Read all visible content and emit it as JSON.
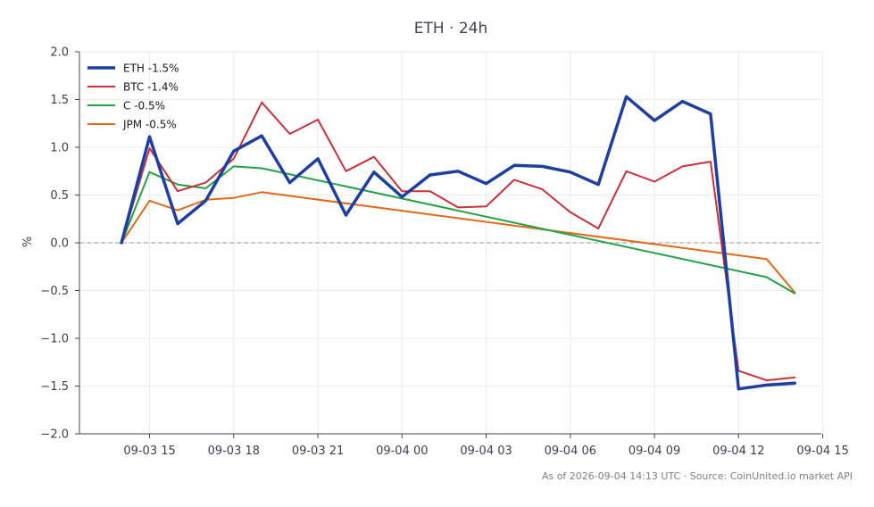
{
  "chart_data": {
    "type": "line",
    "title": "ETH · 24h",
    "xlabel": "",
    "ylabel": "%",
    "ylim": [
      -2.0,
      2.0
    ],
    "yticks": [
      -2.0,
      -1.5,
      -1.0,
      -0.5,
      0.0,
      0.5,
      1.0,
      1.5,
      2.0
    ],
    "ytick_labels": [
      "−2.0",
      "−1.5",
      "−1.0",
      "−0.5",
      "0.0",
      "0.5",
      "1.0",
      "1.5",
      "2.0"
    ],
    "xlim": [
      "2026-09-03 14:00",
      "2026-09-04 15:00"
    ],
    "xtick_labels": [
      "09-03 15",
      "09-03 18",
      "09-03 21",
      "09-04 00",
      "09-04 03",
      "09-04 06",
      "09-04 09",
      "09-04 12",
      "09-04 15"
    ],
    "x": [
      "2026-09-03 14:00",
      "2026-09-03 15:00",
      "2026-09-03 16:00",
      "2026-09-03 17:00",
      "2026-09-03 18:00",
      "2026-09-03 19:00",
      "2026-09-03 20:00",
      "2026-09-03 21:00",
      "2026-09-03 22:00",
      "2026-09-03 23:00",
      "2026-09-04 00:00",
      "2026-09-04 01:00",
      "2026-09-04 02:00",
      "2026-09-04 03:00",
      "2026-09-04 04:00",
      "2026-09-04 05:00",
      "2026-09-04 06:00",
      "2026-09-04 07:00",
      "2026-09-04 08:00",
      "2026-09-04 09:00",
      "2026-09-04 10:00",
      "2026-09-04 11:00",
      "2026-09-04 12:00",
      "2026-09-04 13:00",
      "2026-09-04 14:00"
    ],
    "grid": true,
    "legend_position": "top-left",
    "reference_line": {
      "y": 0.0,
      "style": "dashed",
      "color": "#8d97ae"
    },
    "series": [
      {
        "name": "ETH -1.5%",
        "color": "#1f3fa0",
        "values": [
          0.0,
          1.11,
          0.2,
          0.44,
          0.96,
          1.12,
          0.63,
          0.88,
          0.29,
          0.74,
          0.48,
          0.71,
          0.75,
          0.62,
          0.81,
          0.8,
          0.74,
          0.61,
          1.53,
          1.28,
          1.48,
          1.35,
          -1.53,
          -1.49,
          -1.47
        ]
      },
      {
        "name": "BTC -1.4%",
        "color": "#c9303a",
        "values": [
          0.0,
          0.99,
          0.54,
          0.63,
          0.88,
          1.47,
          1.14,
          1.29,
          0.75,
          0.9,
          0.54,
          0.54,
          0.37,
          0.38,
          0.66,
          0.56,
          0.32,
          0.15,
          0.75,
          0.64,
          0.8,
          0.85,
          -1.34,
          -1.44,
          -1.41
        ]
      },
      {
        "name": "C -0.5%",
        "color": "#24a148",
        "x": [
          "2026-09-03 14:00",
          "2026-09-03 15:00",
          "2026-09-03 16:00",
          "2026-09-03 17:00",
          "2026-09-03 18:00",
          "2026-09-03 19:00",
          "2026-09-04 13:00",
          "2026-09-04 14:00"
        ],
        "values": [
          0.0,
          0.74,
          0.61,
          0.57,
          0.8,
          0.78,
          -0.36,
          -0.53
        ]
      },
      {
        "name": "JPM -0.5%",
        "color": "#e06a17",
        "x": [
          "2026-09-03 14:00",
          "2026-09-03 15:00",
          "2026-09-03 16:00",
          "2026-09-03 17:00",
          "2026-09-03 18:00",
          "2026-09-03 19:00",
          "2026-09-04 13:00",
          "2026-09-04 14:00"
        ],
        "values": [
          0.0,
          0.44,
          0.34,
          0.45,
          0.47,
          0.53,
          -0.17,
          -0.52
        ]
      }
    ],
    "footer": "As of 2026-09-04 14:13 UTC · Source: CoinUnited.io market API"
  }
}
